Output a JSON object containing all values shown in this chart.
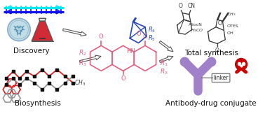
{
  "bg_color": "#ffffff",
  "labels": {
    "discovery": "Discovery",
    "biosynthesis": "Biosynthesis",
    "total_synthesis": "Total synthesis",
    "adc": "Antibody-drug conjugate",
    "linker": "linker"
  },
  "colors": {
    "cyan_dna": "#00e8f0",
    "blue_dna": "#1010ee",
    "red_structure": "#dd2020",
    "blue_structure": "#2244bb",
    "pink_anthraquinone": "#e06080",
    "arrow_fill": "#ffffff",
    "arrow_edge": "#555555",
    "antibody_color": "#a080c8",
    "skull_color": "#cc0000",
    "flask_red": "#cc1520",
    "flask_outline": "#555555",
    "petri_blue": "#c0dde8",
    "box_edge": "#666666",
    "gray_chain": "#888888"
  },
  "figsize": [
    3.78,
    1.86
  ],
  "dpi": 100
}
